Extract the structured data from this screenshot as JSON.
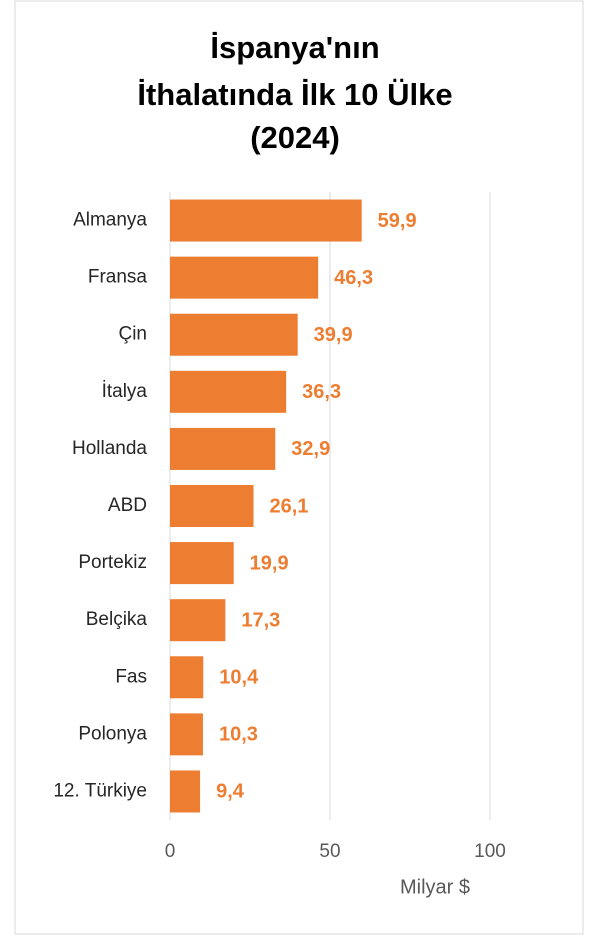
{
  "chart_data": {
    "type": "bar",
    "orientation": "horizontal",
    "title": [
      "İspanya'nın",
      "İthalatında İlk 10 Ülke",
      "(2024)"
    ],
    "x_label": "Milyar $",
    "categories": [
      "Almanya",
      "Fransa",
      "Çin",
      "İtalya",
      "Hollanda",
      "ABD",
      "Portekiz",
      "Belçika",
      "Fas",
      "Polonya",
      "12. Türkiye"
    ],
    "values": [
      59.9,
      46.3,
      39.9,
      36.3,
      32.9,
      26.1,
      19.9,
      17.3,
      10.4,
      10.3,
      9.4
    ],
    "value_labels": [
      "59,9",
      "46,3",
      "39,9",
      "36,3",
      "32,9",
      "26,1",
      "19,9",
      "17,3",
      "10,4",
      "10,3",
      "9,4"
    ],
    "color": "#ed7d31",
    "xlim": [
      0,
      125
    ],
    "xticks": [
      0,
      50,
      100
    ],
    "grid": true
  }
}
